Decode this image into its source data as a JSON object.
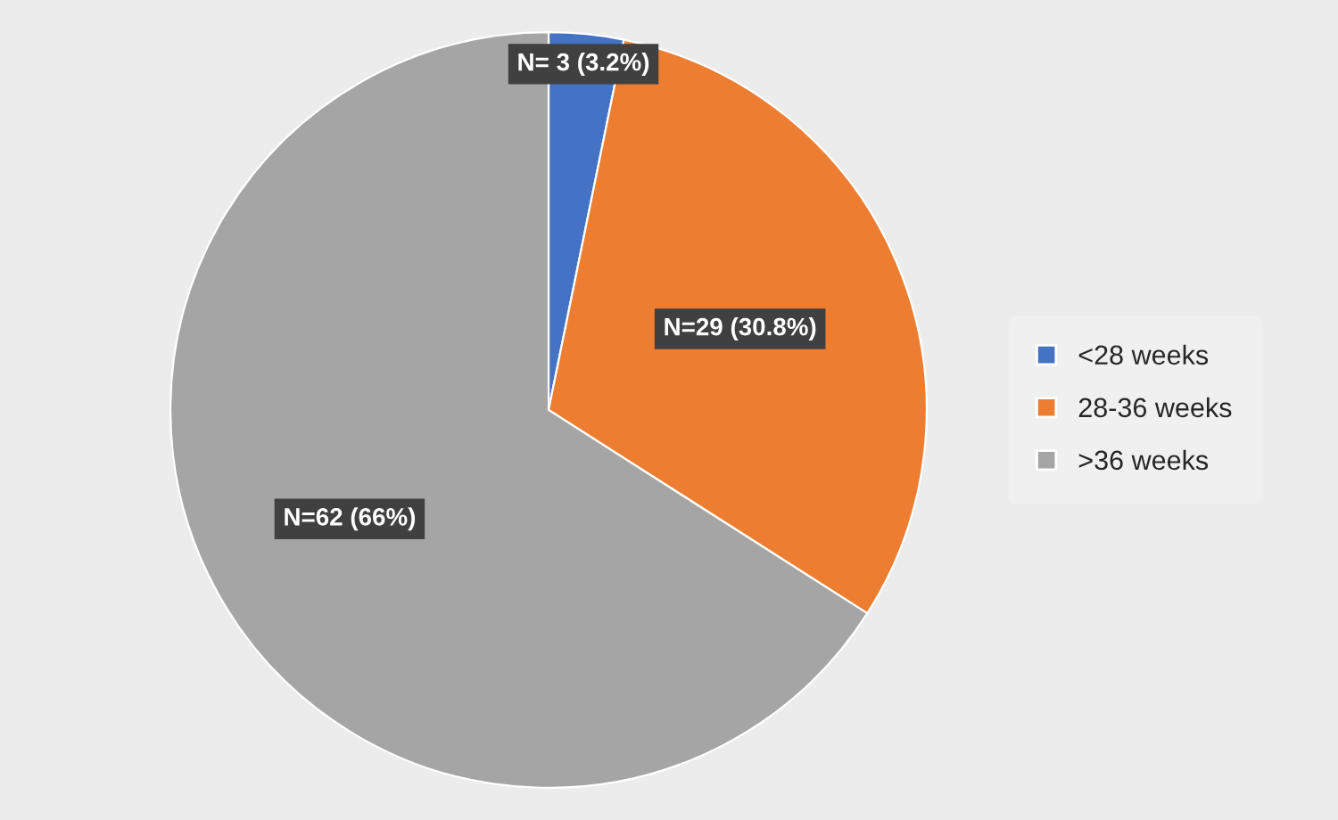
{
  "chart_data": {
    "type": "pie",
    "categories": [
      "<28 weeks",
      "28-36 weeks",
      ">36 weeks"
    ],
    "values": [
      3,
      29,
      62
    ],
    "colors": [
      "#4472c4",
      "#ed7d31",
      "#a5a5a5"
    ],
    "value_labels": [
      "N= 3 (3.2%)",
      "N=29 (30.8%)",
      "N=62 (66%)"
    ],
    "legend": "right"
  }
}
